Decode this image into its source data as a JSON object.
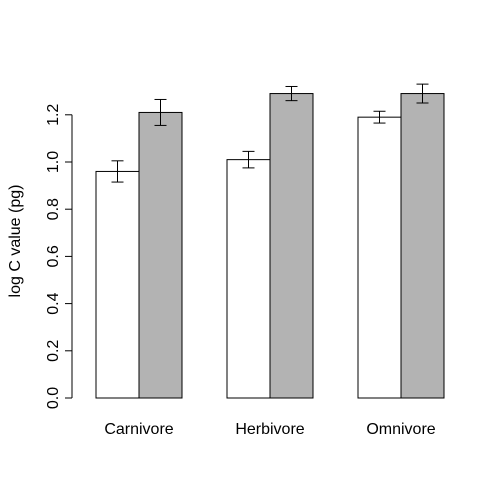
{
  "chart_data": {
    "type": "bar",
    "title": "",
    "xlabel": "",
    "ylabel": "log C value (pg)",
    "categories": [
      "Carnivore",
      "Herbivore",
      "Omnivore"
    ],
    "series": [
      {
        "color": "#ffffff",
        "values": [
          0.96,
          1.01,
          1.19
        ],
        "errors": [
          0.045,
          0.035,
          0.025
        ]
      },
      {
        "color": "#b3b3b3",
        "values": [
          1.21,
          1.29,
          1.29
        ],
        "errors": [
          0.055,
          0.03,
          0.04
        ]
      }
    ],
    "ylim": [
      0,
      1.3
    ],
    "yticks": [
      "0.0",
      "0.2",
      "0.4",
      "0.6",
      "0.8",
      "1.0",
      "1.2"
    ],
    "grid": false,
    "legend": "none"
  }
}
